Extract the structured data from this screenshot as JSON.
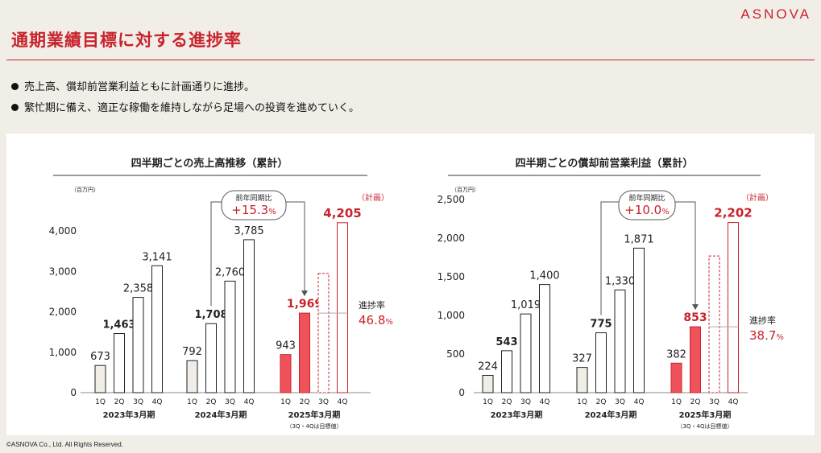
{
  "brand": "ASNOVA",
  "page_title": "通期業績目標に対する進捗率",
  "bullets": [
    "売上高、償却前営業利益ともに計画通りに進捗。",
    "繁忙期に備え、適正な稼働を維持しながら足場への投資を進めていく。"
  ],
  "footer": "©ASNOVA Co., Ltd. All Rights Reserved.",
  "colors": {
    "accent": "#c8232c",
    "current_fill": "#f0525c",
    "base_fill": "#f1eee8"
  },
  "chart_data": [
    {
      "type": "bar",
      "title": "四半期ごとの売上高推移（累計）",
      "unit": "（百万円）",
      "ylim": [
        0,
        4500
      ],
      "yticks": [
        0,
        1000,
        2000,
        3000,
        4000
      ],
      "ytick_labels": [
        "0",
        "1,000",
        "2,000",
        "3,000",
        "4,000"
      ],
      "categories": [
        "1Q",
        "2Q",
        "3Q",
        "4Q"
      ],
      "groups": [
        {
          "label": "2023年3月期",
          "values": [
            673,
            1463,
            2358,
            3141
          ],
          "labels": [
            "673",
            "1,463",
            "2,358",
            "3,141"
          ]
        },
        {
          "label": "2024年3月期",
          "values": [
            792,
            1708,
            2760,
            3785
          ],
          "labels": [
            "792",
            "1,708",
            "2,760",
            "3,785"
          ]
        },
        {
          "label": "2025年3月期",
          "sublabel": "（3Q・4Qは目標値）",
          "values": [
            943,
            1969,
            null,
            4205
          ],
          "labels": [
            "943",
            "1,969",
            "",
            "4,205"
          ],
          "target_3q": 2950
        }
      ],
      "plan_label": "（計画）",
      "yoy_label": "前年同期比",
      "yoy_value": "+15.3",
      "yoy_unit": "%",
      "progress_label": "進捗率",
      "progress_value": "46.8",
      "progress_unit": "%"
    },
    {
      "type": "bar",
      "title": "四半期ごとの償却前営業利益（累計）",
      "unit": "（百万円）",
      "ylim": [
        0,
        2500
      ],
      "yticks": [
        0,
        500,
        1000,
        1500,
        2000,
        2500
      ],
      "ytick_labels": [
        "0",
        "500",
        "1,000",
        "1,500",
        "2,000",
        "2,500"
      ],
      "categories": [
        "1Q",
        "2Q",
        "3Q",
        "4Q"
      ],
      "groups": [
        {
          "label": "2023年3月期",
          "values": [
            224,
            543,
            1019,
            1400
          ],
          "labels": [
            "224",
            "543",
            "1,019",
            "1,400"
          ]
        },
        {
          "label": "2024年3月期",
          "values": [
            327,
            775,
            1330,
            1871
          ],
          "labels": [
            "327",
            "775",
            "1,330",
            "1,871"
          ]
        },
        {
          "label": "2025年3月期",
          "sublabel": "（3Q・4Qは目標値）",
          "values": [
            382,
            853,
            null,
            2202
          ],
          "labels": [
            "382",
            "853",
            "",
            "2,202"
          ],
          "target_3q": 1770
        }
      ],
      "plan_label": "（計画）",
      "yoy_label": "前年同期比",
      "yoy_value": "+10.0",
      "yoy_unit": "%",
      "progress_label": "進捗率",
      "progress_value": "38.7",
      "progress_unit": "%"
    }
  ]
}
